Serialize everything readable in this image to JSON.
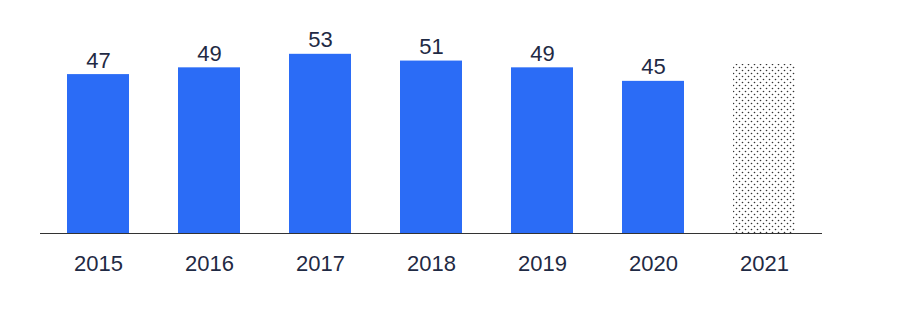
{
  "chart_data": {
    "type": "bar",
    "categories": [
      "2015",
      "2016",
      "2017",
      "2018",
      "2019",
      "2020",
      "2021"
    ],
    "values": [
      47,
      49,
      53,
      51,
      49,
      45,
      50
    ],
    "value_labels": [
      "47",
      "49",
      "53",
      "51",
      "49",
      "45",
      null
    ],
    "colors": [
      "#2b6cf6",
      "#2b6cf6",
      "#2b6cf6",
      "#2b6cf6",
      "#2b6cf6",
      "#2b6cf6",
      "#333333"
    ],
    "ylim": [
      0,
      63
    ],
    "data_labels": true,
    "tick_labels": "x",
    "grid": false
  }
}
